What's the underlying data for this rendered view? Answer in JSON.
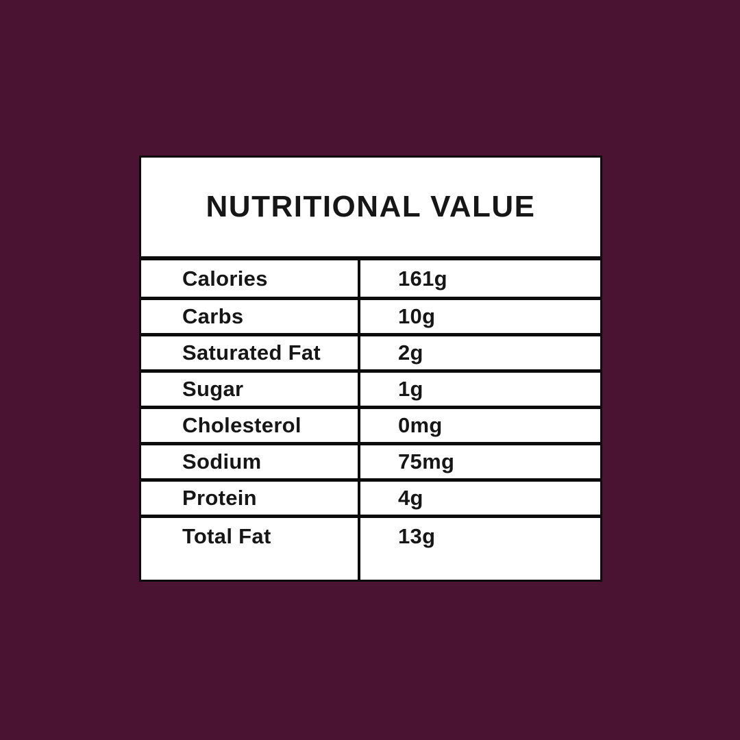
{
  "page": {
    "background_color": "#4a1331"
  },
  "card": {
    "title": "NUTRITIONAL VALUE",
    "background_color": "#ffffff",
    "border_color": "#0b0b0b",
    "text_color": "#161616",
    "rows": [
      {
        "label": "Calories",
        "value": "161g"
      },
      {
        "label": "Carbs",
        "value": "10g"
      },
      {
        "label": "Saturated Fat",
        "value": "2g"
      },
      {
        "label": "Sugar",
        "value": "1g"
      },
      {
        "label": "Cholesterol",
        "value": "0mg"
      },
      {
        "label": "Sodium",
        "value": "75mg"
      },
      {
        "label": "Protein",
        "value": "4g"
      },
      {
        "label": "Total Fat",
        "value": "13g"
      }
    ]
  }
}
